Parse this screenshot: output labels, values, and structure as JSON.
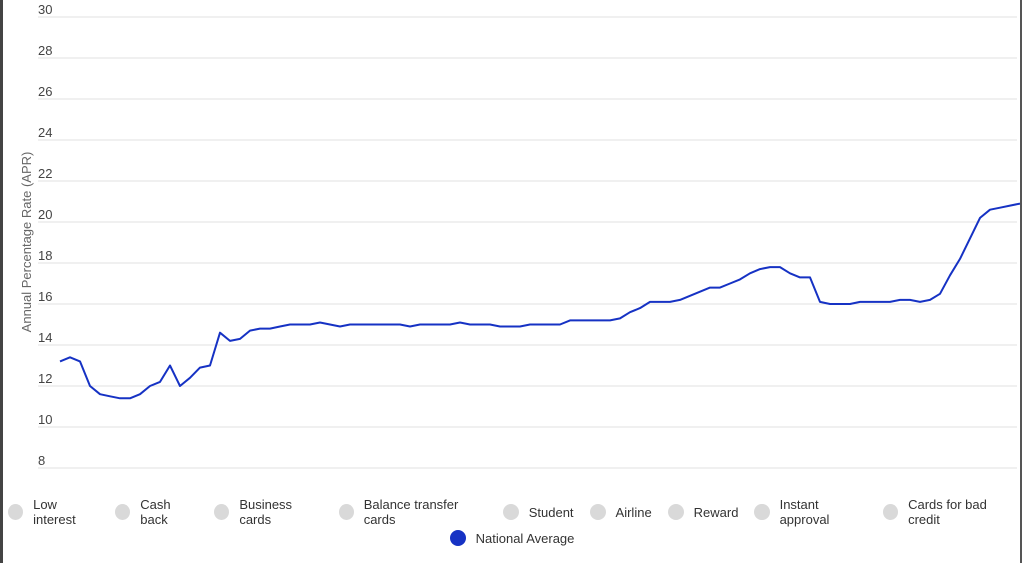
{
  "chart_data": {
    "type": "line",
    "title": "",
    "xlabel": "",
    "ylabel": "Annual Percentage Rate (APR)",
    "ylim": [
      8,
      30
    ],
    "yticks": [
      8,
      10,
      12,
      14,
      16,
      18,
      20,
      22,
      24,
      26,
      28,
      30
    ],
    "grid": true,
    "legend_placement": "bottom",
    "series": [
      {
        "name": "National Average",
        "color": "#1632c4",
        "values": [
          13.2,
          13.4,
          13.2,
          12.0,
          11.6,
          11.5,
          11.4,
          11.4,
          11.6,
          12.0,
          12.2,
          13.0,
          12.0,
          12.4,
          12.9,
          13.0,
          14.6,
          14.2,
          14.3,
          14.7,
          14.8,
          14.8,
          14.9,
          15.0,
          15.0,
          15.0,
          15.1,
          15.0,
          14.9,
          15.0,
          15.0,
          15.0,
          15.0,
          15.0,
          15.0,
          14.9,
          15.0,
          15.0,
          15.0,
          15.0,
          15.1,
          15.0,
          15.0,
          15.0,
          14.9,
          14.9,
          14.9,
          15.0,
          15.0,
          15.0,
          15.0,
          15.2,
          15.2,
          15.2,
          15.2,
          15.2,
          15.3,
          15.6,
          15.8,
          16.1,
          16.1,
          16.1,
          16.2,
          16.4,
          16.6,
          16.8,
          16.8,
          17.0,
          17.2,
          17.5,
          17.7,
          17.8,
          17.8,
          17.5,
          17.3,
          17.3,
          16.1,
          16.0,
          16.0,
          16.0,
          16.1,
          16.1,
          16.1,
          16.1,
          16.2,
          16.2,
          16.1,
          16.2,
          16.5,
          17.4,
          18.2,
          19.2,
          20.2,
          20.6,
          20.7,
          20.8,
          20.9
        ]
      }
    ],
    "legend": [
      {
        "label": "Low interest",
        "active": false,
        "color": "#d9d9d9"
      },
      {
        "label": "Cash back",
        "active": false,
        "color": "#d9d9d9"
      },
      {
        "label": "Business cards",
        "active": false,
        "color": "#d9d9d9"
      },
      {
        "label": "Balance transfer cards",
        "active": false,
        "color": "#d9d9d9"
      },
      {
        "label": "Student",
        "active": false,
        "color": "#d9d9d9"
      },
      {
        "label": "Airline",
        "active": false,
        "color": "#d9d9d9"
      },
      {
        "label": "Reward",
        "active": false,
        "color": "#d9d9d9"
      },
      {
        "label": "Instant approval",
        "active": false,
        "color": "#d9d9d9"
      },
      {
        "label": "Cards for bad credit",
        "active": false,
        "color": "#d9d9d9"
      }
    ],
    "legend_active": {
      "label": "National Average",
      "active": true,
      "color": "#1632c4"
    }
  }
}
